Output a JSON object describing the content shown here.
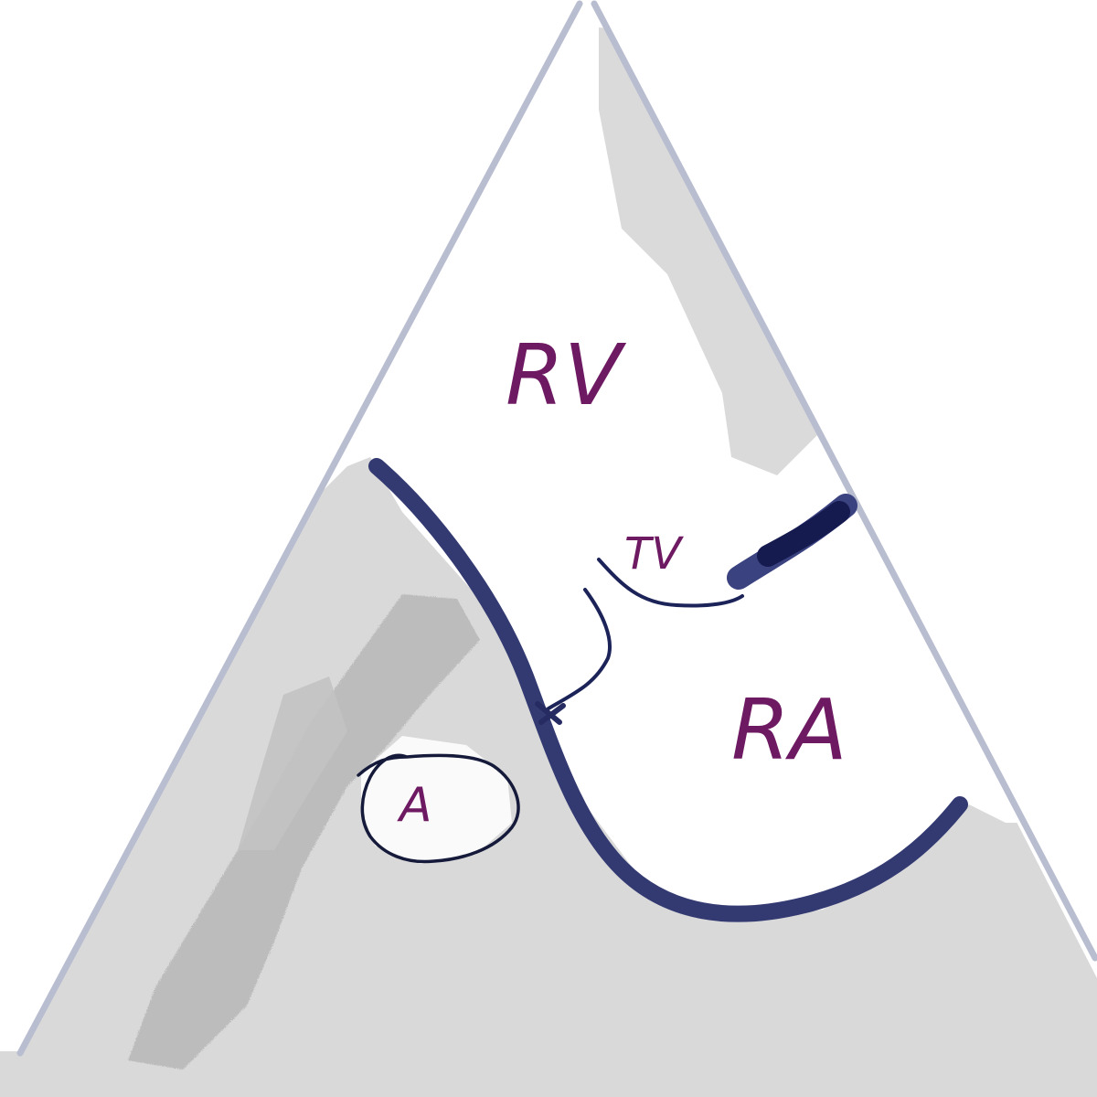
{
  "diagram": {
    "labels": {
      "rv": "RV",
      "ra": "RA",
      "tv": "TV",
      "a": "A"
    },
    "colors": {
      "background": "#ffffff",
      "sector_outline": "#b9bdd0",
      "tissue_gray": "#d8d8d8",
      "tissue_dark_gray": "#b4b4b4",
      "septum_navy": "#333a72",
      "valve_line": "#1c2358",
      "circle_outline": "#151a3a",
      "label_purple": "#6e1a62"
    }
  }
}
